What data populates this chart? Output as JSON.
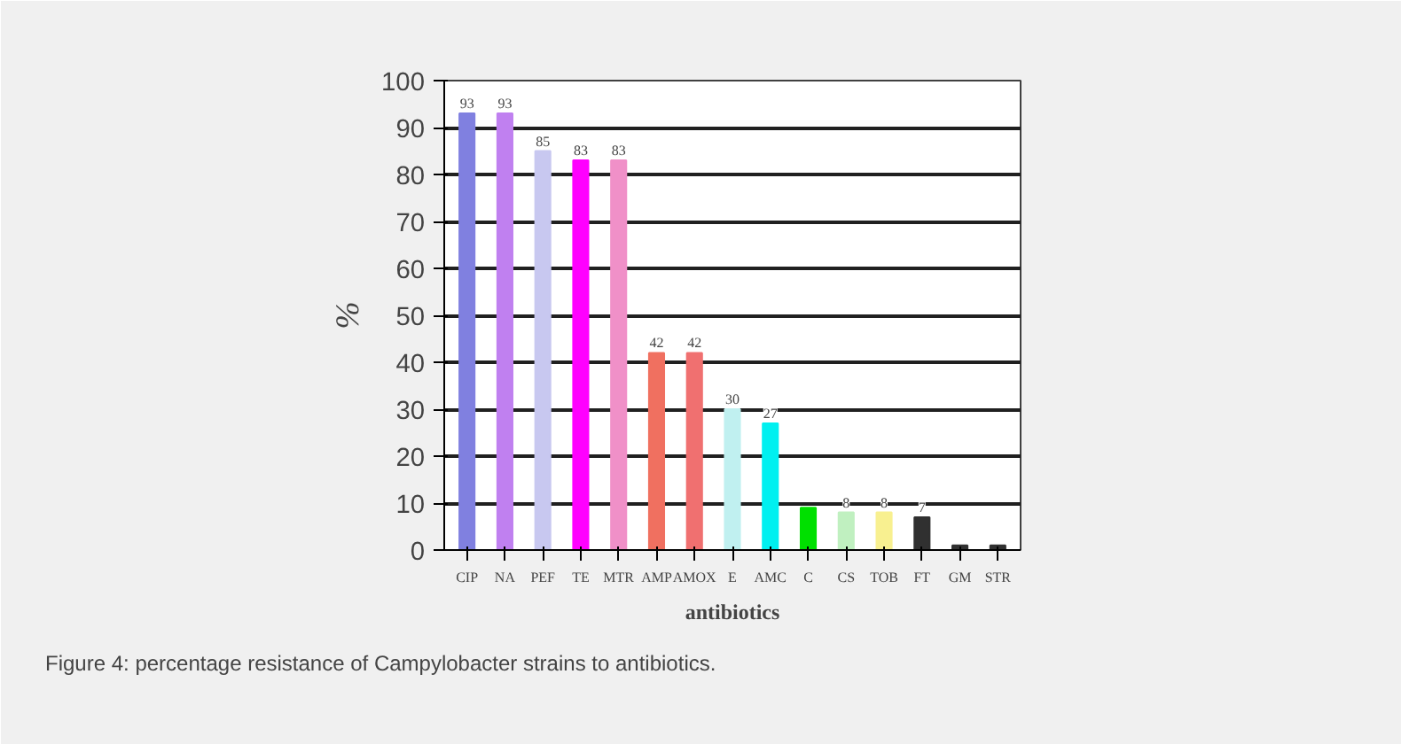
{
  "chart_data": {
    "type": "bar",
    "categories": [
      "CIP",
      "NA",
      "PEF",
      "TE",
      "MTR",
      "AMP",
      "AMOX",
      "E",
      "AMC",
      "C",
      "CS",
      "TOB",
      "FT",
      "GM",
      "STR"
    ],
    "values": [
      93,
      93,
      85,
      83,
      83,
      42,
      42,
      30,
      27,
      9,
      8,
      8,
      7,
      1,
      1
    ],
    "value_labels": [
      "93",
      "93",
      "85",
      "83",
      "83",
      "42",
      "42",
      "30",
      "27",
      null,
      "8",
      "8",
      "7",
      null,
      null
    ],
    "colors": [
      "#8080e0",
      "#c080f0",
      "#c8c8f0",
      "#ff00ff",
      "#f090c8",
      "#f07060",
      "#f07070",
      "#c0f0f0",
      "#00f0f0",
      "#00e000",
      "#c0f0c0",
      "#f8f090",
      "#303030",
      "#303030",
      "#303030"
    ],
    "ylim": [
      0,
      100
    ],
    "yticks": [
      0,
      10,
      20,
      30,
      40,
      50,
      60,
      70,
      80,
      90,
      100
    ],
    "grid": "y",
    "ylabel": "%",
    "xlabel": "antibiotics",
    "annotations": [
      "Figure 4: percentage resistance of Campylobacter strains to antibiotics."
    ]
  }
}
